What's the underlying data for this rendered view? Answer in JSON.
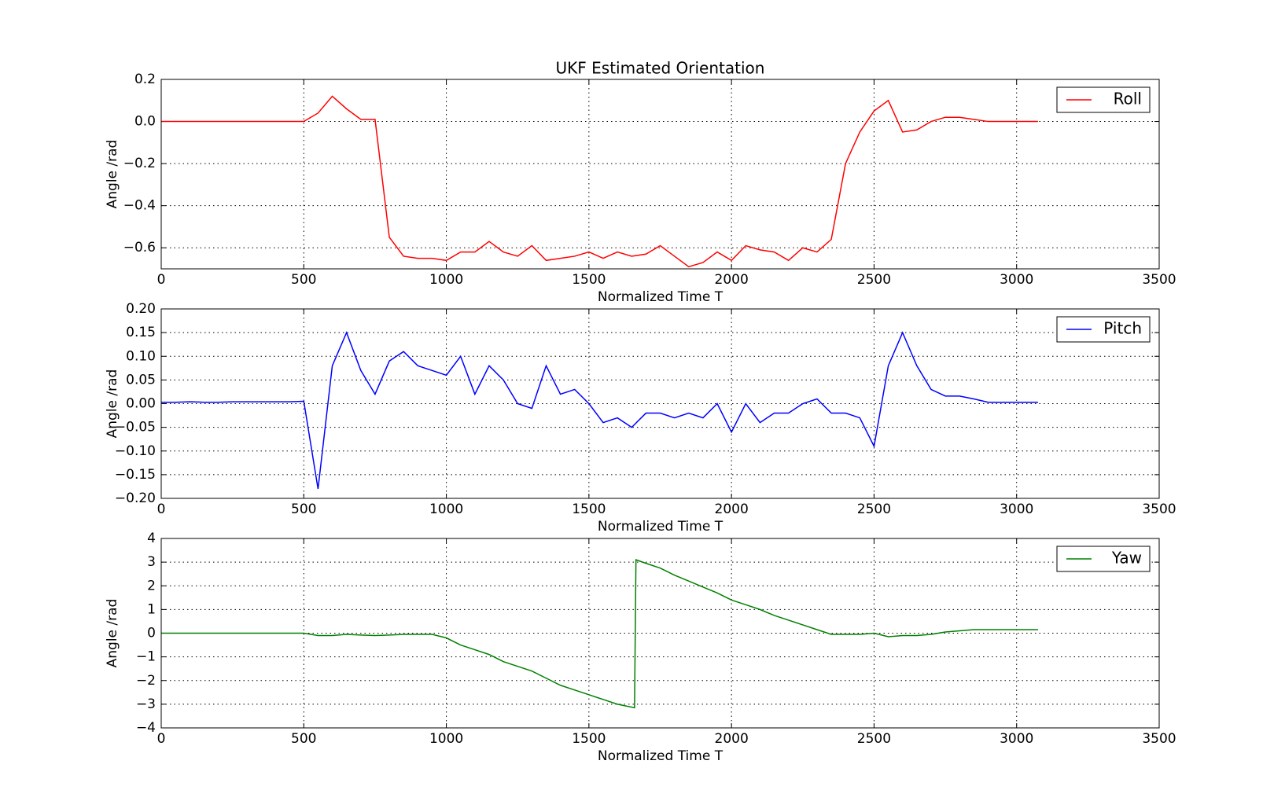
{
  "chart_data": [
    {
      "type": "line",
      "title": "UKF Estimated Orientation",
      "xlabel": "Normalized Time T",
      "ylabel": "Angle /rad",
      "x": [
        0,
        50,
        100,
        150,
        200,
        250,
        300,
        350,
        400,
        450,
        500,
        550,
        600,
        650,
        700,
        750,
        800,
        850,
        900,
        950,
        1000,
        1050,
        1100,
        1150,
        1200,
        1250,
        1300,
        1350,
        1400,
        1450,
        1500,
        1550,
        1600,
        1650,
        1700,
        1750,
        1800,
        1850,
        1900,
        1950,
        2000,
        2050,
        2100,
        2150,
        2200,
        2250,
        2300,
        2350,
        2400,
        2450,
        2500,
        2550,
        2600,
        2650,
        2700,
        2750,
        2800,
        2850,
        2900,
        2950,
        3000,
        3050,
        3075
      ],
      "series": [
        {
          "name": "Roll",
          "color": "#ff0000",
          "values": [
            0,
            0,
            0,
            0,
            0,
            0,
            0,
            0,
            0,
            0,
            0,
            0.04,
            0.12,
            0.06,
            0.01,
            0.01,
            -0.55,
            -0.64,
            -0.65,
            -0.65,
            -0.66,
            -0.62,
            -0.62,
            -0.57,
            -0.62,
            -0.64,
            -0.59,
            -0.66,
            -0.65,
            -0.64,
            -0.62,
            -0.65,
            -0.62,
            -0.64,
            -0.63,
            -0.59,
            -0.64,
            -0.69,
            -0.67,
            -0.62,
            -0.66,
            -0.59,
            -0.61,
            -0.62,
            -0.66,
            -0.6,
            -0.62,
            -0.56,
            -0.2,
            -0.05,
            0.05,
            0.1,
            -0.05,
            -0.04,
            0,
            0.02,
            0.02,
            0.01,
            0,
            0,
            0,
            0,
            0
          ]
        }
      ],
      "xlim": [
        0,
        3500
      ],
      "xticks": [
        0,
        500,
        1000,
        1500,
        2000,
        2500,
        3000,
        3500
      ],
      "ylim": [
        -0.7,
        0.2
      ],
      "yticks": [
        {
          "value": 0.2,
          "label": "0.2"
        },
        {
          "value": 0,
          "label": "0.0"
        },
        {
          "value": -0.2,
          "label": "−0.2"
        },
        {
          "value": -0.4,
          "label": "−0.4"
        },
        {
          "value": -0.6,
          "label": "−0.6"
        }
      ],
      "grid": true,
      "legend": "upper right"
    },
    {
      "type": "line",
      "xlabel": "Normalized Time T",
      "ylabel": "Angle /rad",
      "x": [
        0,
        50,
        100,
        150,
        200,
        250,
        300,
        350,
        400,
        450,
        500,
        550,
        600,
        650,
        700,
        750,
        800,
        850,
        900,
        950,
        1000,
        1050,
        1100,
        1150,
        1200,
        1250,
        1300,
        1350,
        1400,
        1450,
        1500,
        1550,
        1600,
        1650,
        1700,
        1750,
        1800,
        1850,
        1900,
        1950,
        2000,
        2050,
        2100,
        2150,
        2200,
        2250,
        2300,
        2350,
        2400,
        2450,
        2500,
        2550,
        2600,
        2650,
        2700,
        2750,
        2800,
        2850,
        2900,
        2950,
        3000,
        3050,
        3075
      ],
      "series": [
        {
          "name": "Pitch",
          "color": "#0000ff",
          "values": [
            0.003,
            0.003,
            0.004,
            0.003,
            0.003,
            0.004,
            0.004,
            0.004,
            0.004,
            0.004,
            0.005,
            -0.18,
            0.08,
            0.15,
            0.07,
            0.02,
            0.09,
            0.11,
            0.08,
            0.07,
            0.06,
            0.1,
            0.02,
            0.08,
            0.05,
            0,
            -0.01,
            0.08,
            0.02,
            0.03,
            0,
            -0.04,
            -0.03,
            -0.05,
            -0.02,
            -0.02,
            -0.03,
            -0.02,
            -0.03,
            0,
            -0.06,
            0,
            -0.04,
            -0.02,
            -0.02,
            0,
            0.01,
            -0.02,
            -0.02,
            -0.03,
            -0.09,
            0.08,
            0.15,
            0.08,
            0.03,
            0.016,
            0.016,
            0.01,
            0.003,
            0.003,
            0.003,
            0.003,
            0.003
          ]
        }
      ],
      "xlim": [
        0,
        3500
      ],
      "xticks": [
        0,
        500,
        1000,
        1500,
        2000,
        2500,
        3000,
        3500
      ],
      "ylim": [
        -0.2,
        0.2
      ],
      "yticks": [
        {
          "value": 0.2,
          "label": "0.20"
        },
        {
          "value": 0.15,
          "label": "0.15"
        },
        {
          "value": 0.1,
          "label": "0.10"
        },
        {
          "value": 0.05,
          "label": "0.05"
        },
        {
          "value": 0,
          "label": "0.00"
        },
        {
          "value": -0.05,
          "label": "−0.05"
        },
        {
          "value": -0.1,
          "label": "−0.10"
        },
        {
          "value": -0.15,
          "label": "−0.15"
        },
        {
          "value": -0.2,
          "label": "−0.20"
        }
      ],
      "grid": true,
      "legend": "upper right"
    },
    {
      "type": "line",
      "xlabel": "Normalized Time T",
      "ylabel": "Angle /rad",
      "x": [
        0,
        50,
        100,
        150,
        200,
        250,
        300,
        350,
        400,
        450,
        500,
        550,
        600,
        650,
        700,
        750,
        800,
        850,
        900,
        950,
        1000,
        1050,
        1100,
        1150,
        1200,
        1250,
        1300,
        1350,
        1400,
        1450,
        1500,
        1550,
        1600,
        1660,
        1665,
        1700,
        1750,
        1800,
        1850,
        1900,
        1950,
        2000,
        2050,
        2100,
        2150,
        2200,
        2250,
        2300,
        2350,
        2400,
        2450,
        2500,
        2550,
        2600,
        2650,
        2700,
        2750,
        2800,
        2850,
        2900,
        2950,
        3000,
        3050,
        3075
      ],
      "series": [
        {
          "name": "Yaw",
          "color": "#008000",
          "values": [
            0,
            0,
            0,
            0,
            0,
            0,
            0,
            0,
            0,
            0,
            0,
            -0.1,
            -0.1,
            -0.05,
            -0.08,
            -0.1,
            -0.08,
            -0.05,
            -0.05,
            -0.05,
            -0.2,
            -0.5,
            -0.7,
            -0.9,
            -1.2,
            -1.4,
            -1.6,
            -1.9,
            -2.2,
            -2.4,
            -2.6,
            -2.8,
            -3.0,
            -3.15,
            3.1,
            2.95,
            2.75,
            2.45,
            2.2,
            1.95,
            1.7,
            1.4,
            1.2,
            1.0,
            0.75,
            0.55,
            0.35,
            0.15,
            -0.05,
            -0.05,
            -0.05,
            0,
            -0.15,
            -0.1,
            -0.1,
            -0.05,
            0.05,
            0.1,
            0.15,
            0.15,
            0.15,
            0.15,
            0.15,
            0.15
          ]
        }
      ],
      "xlim": [
        0,
        3500
      ],
      "xticks": [
        0,
        500,
        1000,
        1500,
        2000,
        2500,
        3000,
        3500
      ],
      "ylim": [
        -4,
        4
      ],
      "yticks": [
        4,
        3,
        2,
        1,
        0,
        {
          "value": -1,
          "label": "−1"
        },
        {
          "value": -2,
          "label": "−2"
        },
        {
          "value": -3,
          "label": "−3"
        },
        {
          "value": -4,
          "label": "−4"
        }
      ],
      "grid": true,
      "legend": "upper right"
    }
  ]
}
